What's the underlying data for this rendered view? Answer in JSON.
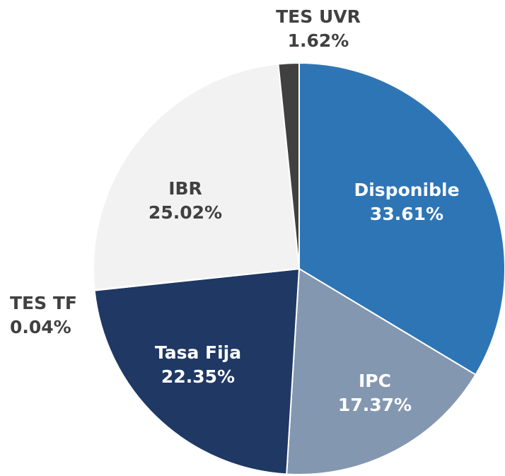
{
  "chart_data": {
    "type": "pie",
    "categories": [
      "Disponible",
      "IPC",
      "Tasa Fija",
      "TES TF",
      "IBR",
      "TES UVR"
    ],
    "values": [
      33.61,
      17.37,
      22.35,
      0.04,
      25.02,
      1.62
    ],
    "value_labels": [
      "33.61%",
      "17.37%",
      "22.35%",
      "0.04%",
      "25.02%",
      "1.62%"
    ],
    "colors": [
      "#2e75b6",
      "#8497b0",
      "#1f3864",
      "#1f3864",
      "#f2f2f2",
      "#404040"
    ]
  }
}
